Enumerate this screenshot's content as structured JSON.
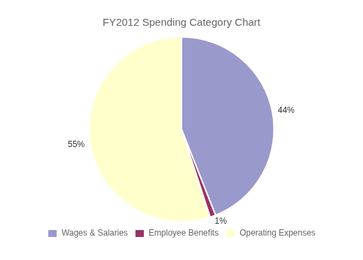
{
  "chart_data": {
    "type": "pie",
    "title": "FY2012 Spending Category Chart",
    "categories": [
      "Wages & Salaries",
      "Employee Benefits",
      "Operating Expenses"
    ],
    "values": [
      44,
      1,
      55
    ],
    "value_labels": [
      "44%",
      "1%",
      "55%"
    ],
    "colors": [
      "#9999cc",
      "#993366",
      "#ffffcc"
    ],
    "data_labels": true,
    "legend": "bottom"
  }
}
